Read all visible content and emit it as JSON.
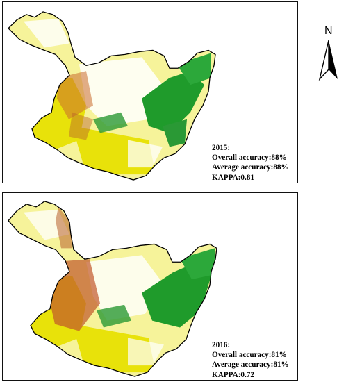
{
  "north_arrow": {
    "letter": "N",
    "icon": "north-arrow-icon"
  },
  "legend_colors": {
    "forest": "#1f9b2b",
    "crop": "#e8e20a",
    "grass": "#f6f39a",
    "built": "#b85f2b",
    "outline": "#000000"
  },
  "panels": [
    {
      "year": "2015:",
      "overall": "Overall accuracy:88%",
      "average": "Average accuracy:88%",
      "kappa": "KAPPA:0.81"
    },
    {
      "year": "2016:",
      "overall": "Overall accuracy:81%",
      "average": "Average accuracy:81%",
      "kappa": "KAPPA:0.72"
    }
  ]
}
